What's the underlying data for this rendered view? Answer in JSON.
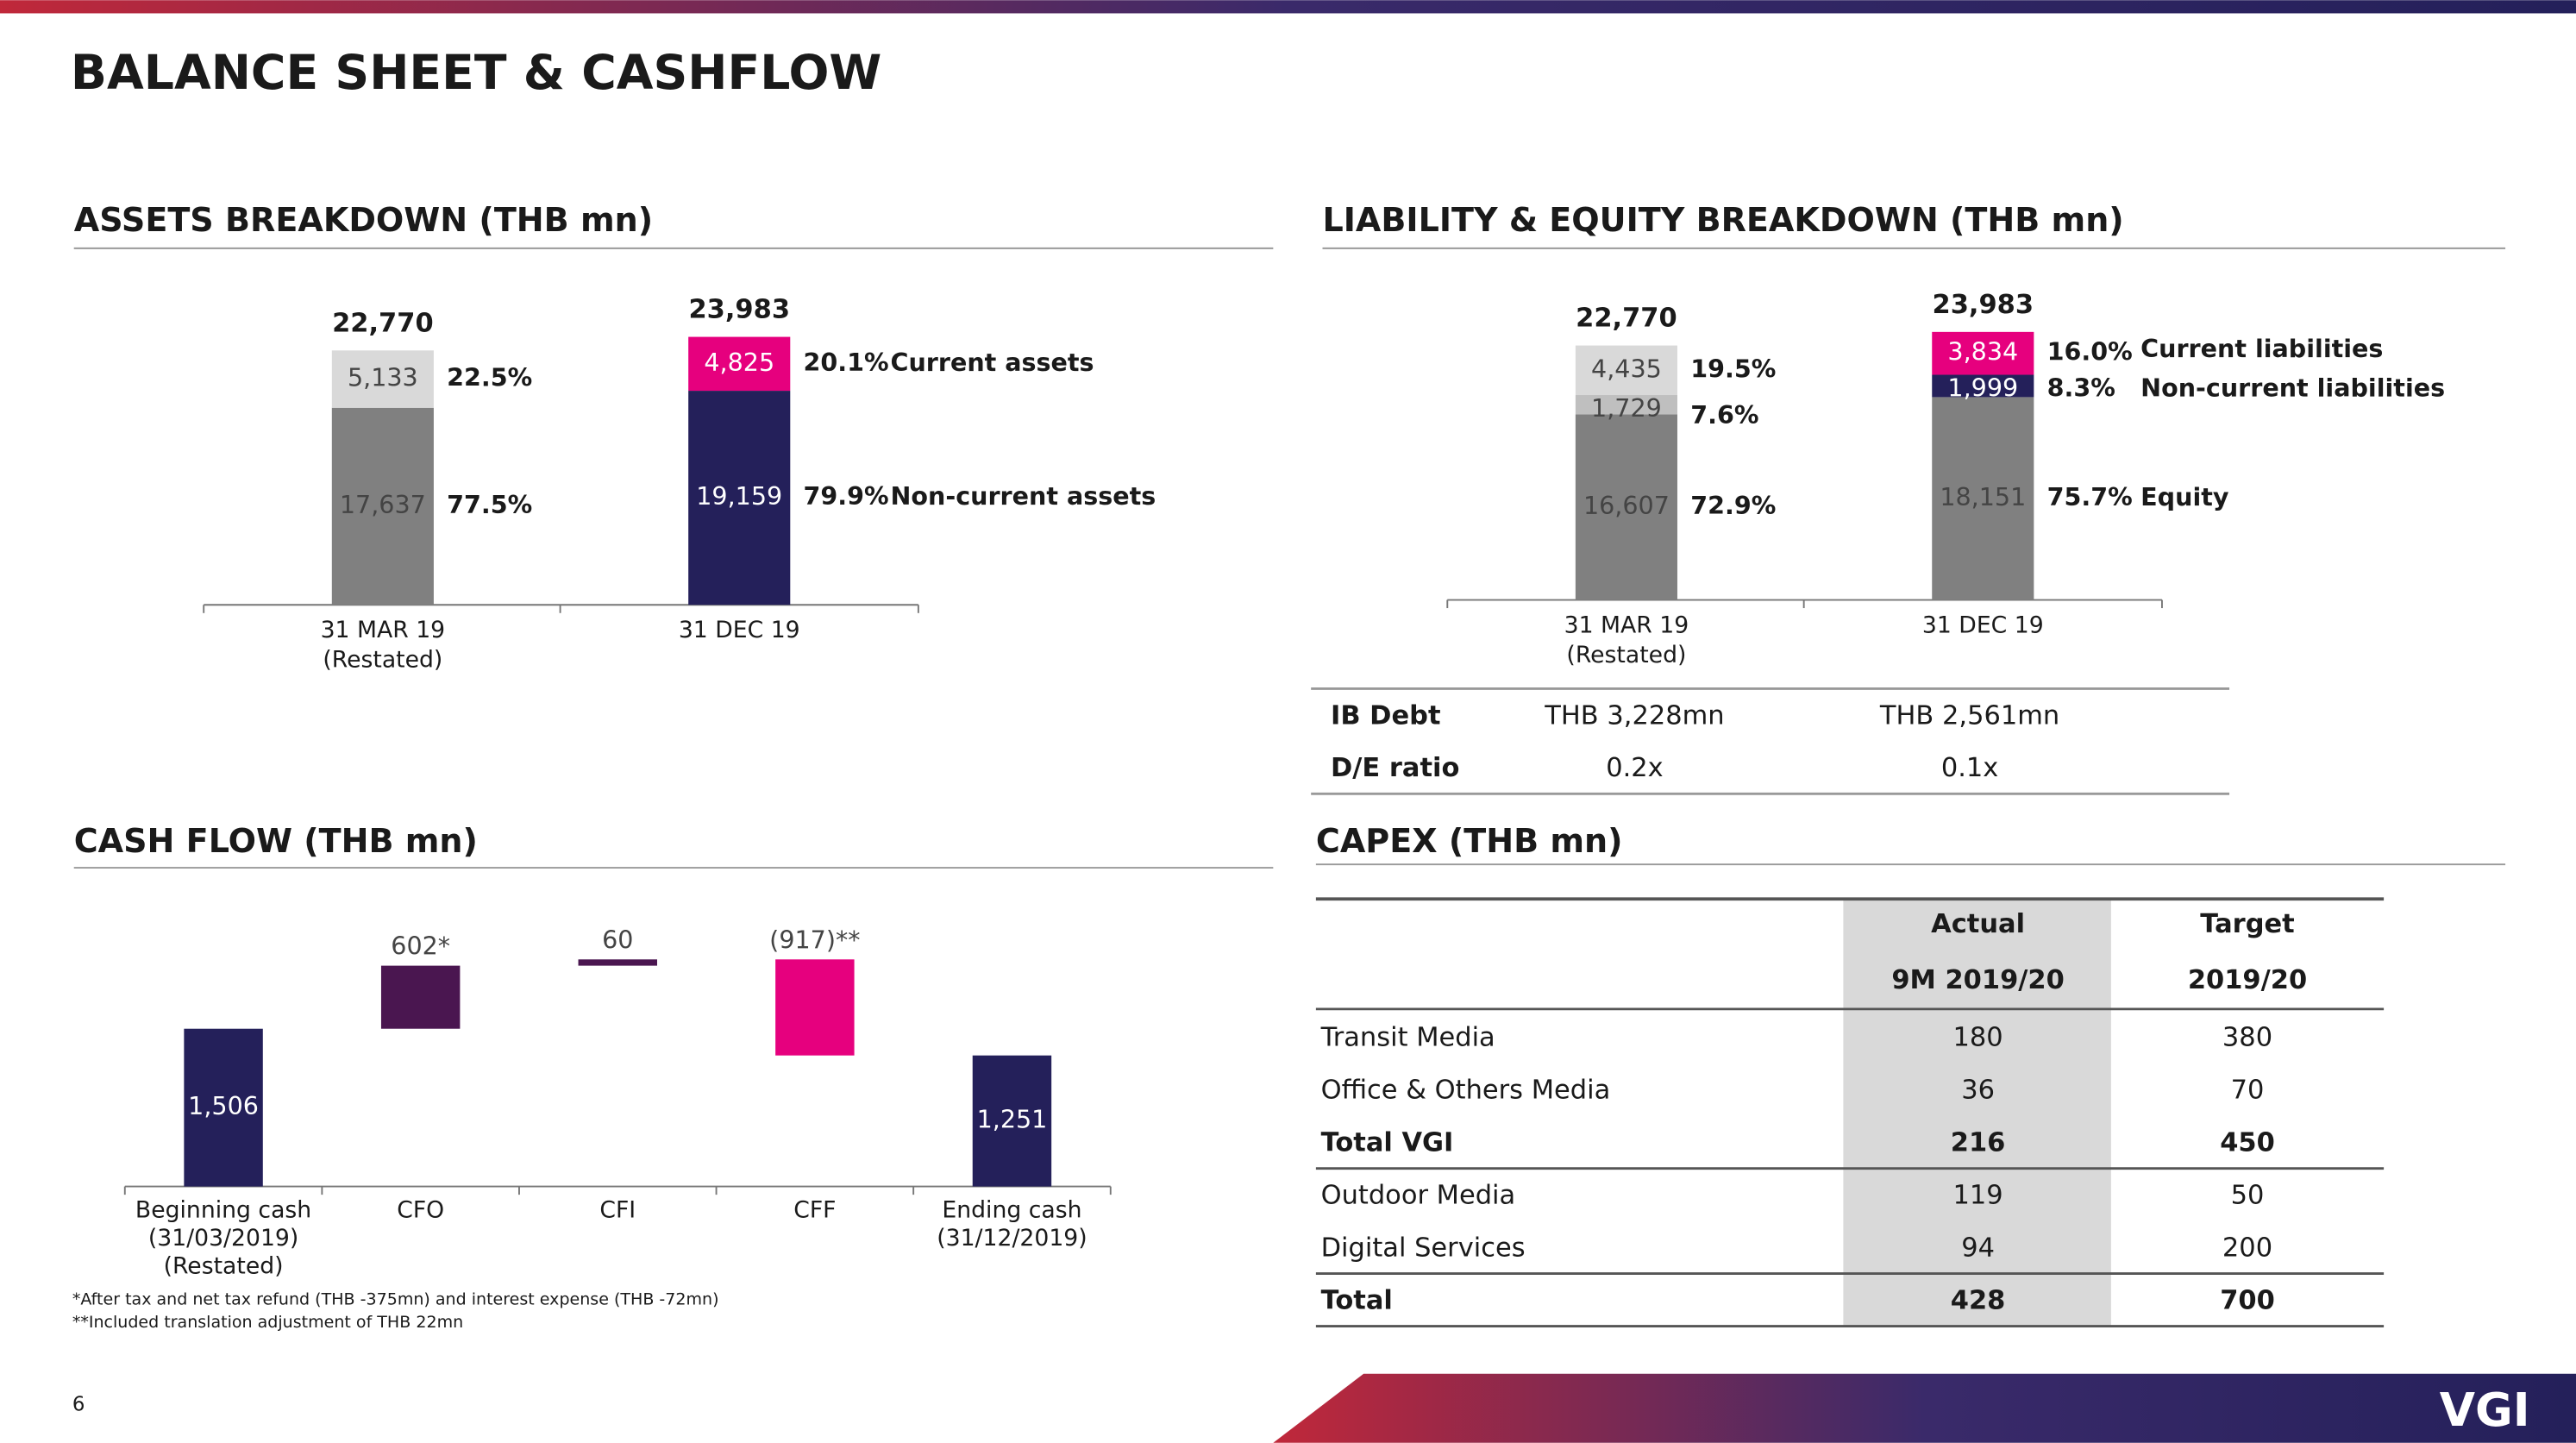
{
  "title": "BALANCE SHEET & CASHFLOW",
  "page_number": "6",
  "logo": "VGI",
  "chart_data": [
    {
      "type": "stacked_bar",
      "title": "ASSETS BREAKDOWN (THB mn)",
      "categories": [
        "31 MAR 19",
        "31 DEC 19"
      ],
      "category_notes": [
        "(Restated)",
        null
      ],
      "totals": [
        22770,
        23983
      ],
      "total_labels": [
        "22,770",
        "23,983"
      ],
      "ylim": [
        0,
        25000
      ],
      "series": [
        {
          "name": "Non-current assets",
          "colors": [
            "#808080",
            "#24205a"
          ],
          "values": [
            17637,
            19159
          ],
          "value_labels": [
            "17,637",
            "19,159"
          ],
          "percent_labels": [
            "77.5%",
            "79.9%"
          ]
        },
        {
          "name": "Current assets",
          "colors": [
            "#d9d9d9",
            "#e6007e"
          ],
          "values": [
            5133,
            4825
          ],
          "value_labels": [
            "5,133",
            "4,825"
          ],
          "percent_labels": [
            "22.5%",
            "20.1%"
          ]
        }
      ]
    },
    {
      "type": "stacked_bar",
      "title": "LIABILITY & EQUITY BREAKDOWN (THB mn)",
      "categories": [
        "31 MAR 19",
        "31 DEC 19"
      ],
      "category_notes": [
        "(Restated)",
        null
      ],
      "totals": [
        22770,
        23983
      ],
      "total_labels": [
        "22,770",
        "23,983"
      ],
      "ylim": [
        0,
        25000
      ],
      "series": [
        {
          "name": "Equity",
          "colors": [
            "#808080",
            "#808080"
          ],
          "values": [
            16607,
            18151
          ],
          "value_labels": [
            "16,607",
            "18,151"
          ],
          "percent_labels": [
            "72.9%",
            "75.7%"
          ]
        },
        {
          "name": "Non-current liabilities",
          "colors": [
            "#bfbfbf",
            "#24205a"
          ],
          "values": [
            1729,
            1999
          ],
          "value_labels": [
            "1,729",
            "1,999"
          ],
          "percent_labels": [
            "7.6%",
            "8.3%"
          ]
        },
        {
          "name": "Current liabilities",
          "colors": [
            "#d9d9d9",
            "#e6007e"
          ],
          "values": [
            4435,
            3834
          ],
          "value_labels": [
            "4,435",
            "3,834"
          ],
          "percent_labels": [
            "19.5%",
            "16.0%"
          ]
        }
      ]
    },
    {
      "type": "waterfall",
      "title": "CASH FLOW (THB mn)",
      "categories": [
        "Beginning cash",
        "CFO",
        "CFI",
        "CFF",
        "Ending cash"
      ],
      "category_notes": [
        [
          "(31/03/2019)",
          "(Restated)"
        ],
        [],
        [],
        [],
        [
          "(31/12/2019)"
        ]
      ],
      "values": [
        1506,
        602,
        60,
        -917,
        1251
      ],
      "value_labels": [
        "1,506",
        "602*",
        "60",
        "(917)**",
        "1,251"
      ],
      "measures": [
        "absolute",
        "relative",
        "relative",
        "relative",
        "total"
      ],
      "colors": [
        "#24205a",
        "#4a1650",
        "#4a1650",
        "#e6007e",
        "#24205a"
      ],
      "ylim": [
        0,
        2400
      ],
      "footnotes": [
        "*After tax and net tax refund (THB -375mn) and interest expense (THB -72mn)",
        "**Included translation adjustment of THB 22mn"
      ]
    }
  ],
  "debt_table": {
    "rows": [
      [
        "IB Debt",
        "THB 3,228mn",
        "THB 2,561mn"
      ],
      [
        "D/E ratio",
        "0.2x",
        "0.1x"
      ]
    ]
  },
  "capex": {
    "title": "CAPEX (THB mn)",
    "header": [
      [
        "Actual",
        "Target"
      ],
      [
        "9M 2019/20",
        "2019/20"
      ]
    ],
    "rows": [
      [
        "Transit Media",
        180,
        380
      ],
      [
        "Office & Others Media",
        36,
        70
      ],
      [
        "Total VGI",
        216,
        450
      ],
      [
        "Outdoor Media",
        119,
        50
      ],
      [
        "Digital Services",
        94,
        200
      ],
      [
        "Total",
        428,
        700
      ]
    ],
    "bold_rows": [
      2,
      5
    ]
  }
}
